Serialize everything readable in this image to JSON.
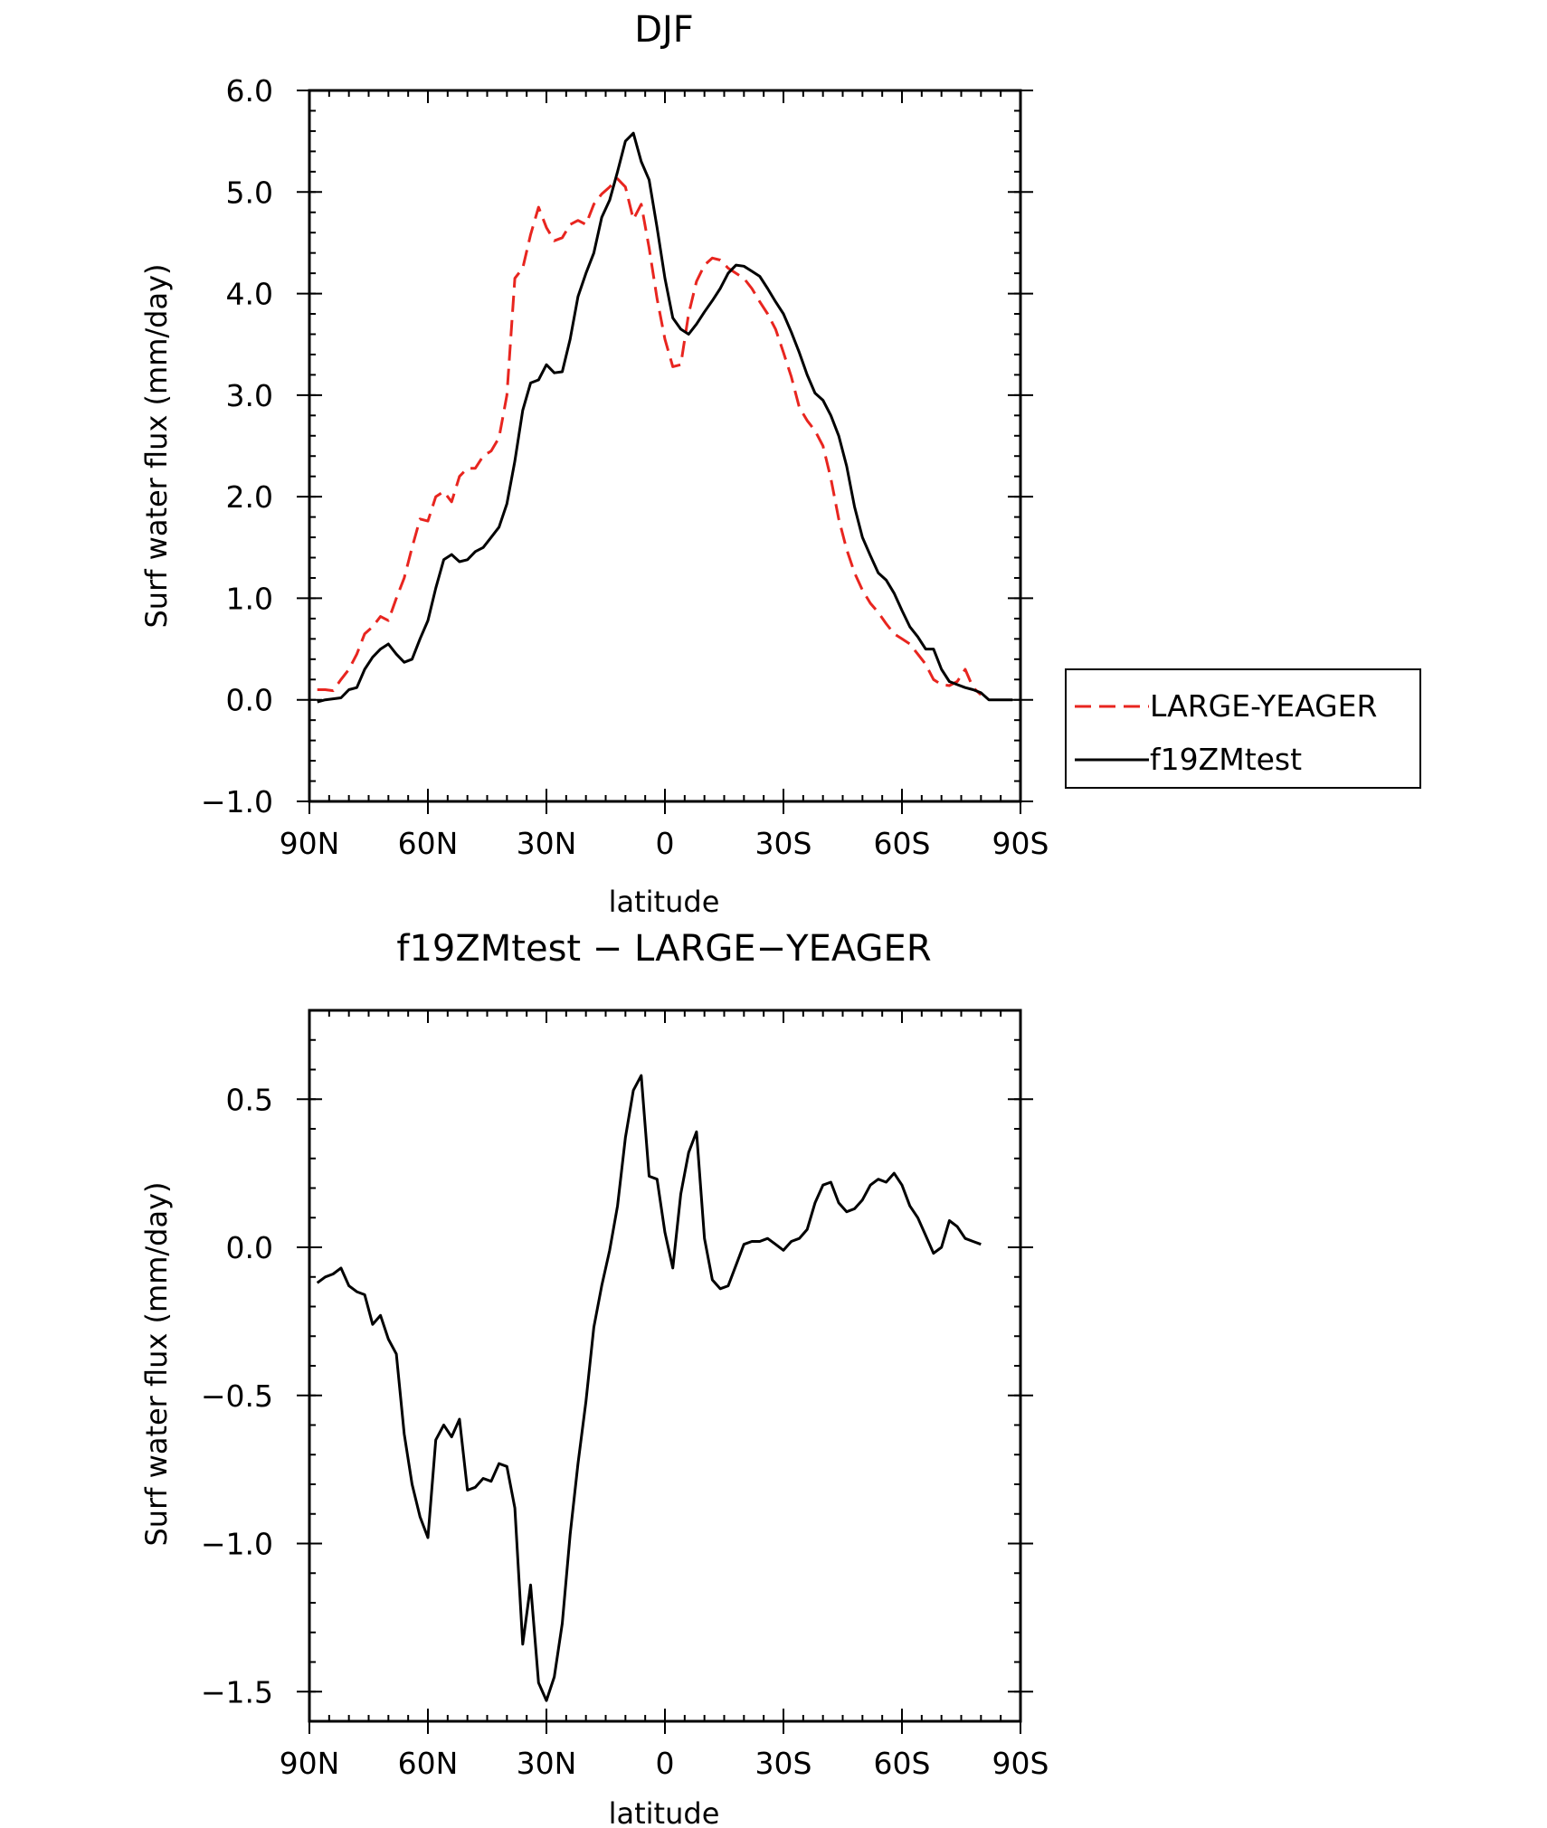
{
  "chart_data": [
    {
      "type": "line",
      "title": "DJF",
      "xlabel": "latitude",
      "ylabel": "Surf water flux (mm/day)",
      "xlim": [
        -90,
        90
      ],
      "ylim": [
        -1.0,
        6.0
      ],
      "xticks": [
        -90,
        -60,
        -30,
        0,
        30,
        60,
        90
      ],
      "xtick_labels": [
        "90N",
        "60N",
        "30N",
        "0",
        "30S",
        "60S",
        "90S"
      ],
      "yticks": [
        -1.0,
        0.0,
        1.0,
        2.0,
        3.0,
        4.0,
        5.0,
        6.0
      ],
      "ytick_labels": [
        "−1.0",
        "0.0",
        "1.0",
        "2.0",
        "3.0",
        "4.0",
        "5.0",
        "6.0"
      ],
      "legend_position": "right",
      "series": [
        {
          "name": "LARGE-YEAGER",
          "color": "#e8251f",
          "dash": "dashed",
          "x": [
            -88,
            -86,
            -84,
            -82,
            -80,
            -78,
            -76,
            -74,
            -72,
            -70,
            -68,
            -66,
            -64,
            -62,
            -60,
            -58,
            -56,
            -54,
            -52,
            -50,
            -48,
            -46,
            -44,
            -42,
            -40,
            -38,
            -36,
            -34,
            -32,
            -30,
            -28,
            -26,
            -24,
            -22,
            -20,
            -18,
            -16,
            -14,
            -12,
            -10,
            -8,
            -6,
            -4,
            -2,
            0,
            2,
            4,
            6,
            8,
            10,
            12,
            14,
            16,
            18,
            20,
            22,
            24,
            26,
            28,
            30,
            32,
            34,
            36,
            38,
            40,
            42,
            44,
            46,
            48,
            50,
            52,
            54,
            56,
            58,
            60,
            62,
            64,
            66,
            68,
            70,
            72,
            74,
            76,
            78,
            80
          ],
          "y": [
            0.1,
            0.1,
            0.09,
            0.2,
            0.3,
            0.45,
            0.65,
            0.72,
            0.82,
            0.78,
            1.0,
            1.2,
            1.5,
            1.78,
            1.76,
            2.0,
            2.05,
            1.95,
            2.2,
            2.28,
            2.28,
            2.4,
            2.45,
            2.58,
            3.0,
            4.15,
            4.25,
            4.58,
            4.85,
            4.65,
            4.52,
            4.55,
            4.68,
            4.72,
            4.68,
            4.88,
            4.98,
            5.05,
            5.13,
            5.05,
            4.73,
            4.88,
            4.45,
            3.95,
            3.55,
            3.28,
            3.3,
            3.8,
            4.12,
            4.28,
            4.35,
            4.33,
            4.25,
            4.2,
            4.15,
            4.05,
            3.92,
            3.8,
            3.65,
            3.42,
            3.18,
            2.88,
            2.75,
            2.65,
            2.5,
            2.18,
            1.78,
            1.48,
            1.25,
            1.08,
            0.95,
            0.86,
            0.75,
            0.65,
            0.6,
            0.55,
            0.45,
            0.35,
            0.2,
            0.15,
            0.14,
            0.18,
            0.3,
            0.12,
            0.05
          ]
        },
        {
          "name": "f19ZMtest",
          "color": "#000000",
          "dash": "solid",
          "x": [
            -88,
            -86,
            -84,
            -82,
            -80,
            -78,
            -76,
            -74,
            -72,
            -70,
            -68,
            -66,
            -64,
            -62,
            -60,
            -58,
            -56,
            -54,
            -52,
            -50,
            -48,
            -46,
            -44,
            -42,
            -40,
            -38,
            -36,
            -34,
            -32,
            -30,
            -28,
            -26,
            -24,
            -22,
            -20,
            -18,
            -16,
            -14,
            -12,
            -10,
            -8,
            -6,
            -4,
            -2,
            0,
            2,
            4,
            6,
            8,
            10,
            12,
            14,
            16,
            18,
            20,
            22,
            24,
            26,
            28,
            30,
            32,
            34,
            36,
            38,
            40,
            42,
            44,
            46,
            48,
            50,
            52,
            54,
            56,
            58,
            60,
            62,
            64,
            66,
            68,
            70,
            72,
            74,
            76,
            78,
            80,
            82,
            84,
            86,
            88
          ],
          "y": [
            -0.02,
            0.0,
            0.01,
            0.02,
            0.1,
            0.12,
            0.3,
            0.42,
            0.5,
            0.55,
            0.45,
            0.37,
            0.4,
            0.6,
            0.78,
            1.1,
            1.38,
            1.43,
            1.36,
            1.38,
            1.46,
            1.5,
            1.6,
            1.7,
            1.93,
            2.35,
            2.85,
            3.12,
            3.15,
            3.3,
            3.22,
            3.23,
            3.55,
            3.97,
            4.2,
            4.4,
            4.75,
            4.92,
            5.2,
            5.5,
            5.58,
            5.3,
            5.12,
            4.65,
            4.15,
            3.76,
            3.65,
            3.6,
            3.7,
            3.82,
            3.93,
            4.05,
            4.2,
            4.28,
            4.27,
            4.22,
            4.17,
            4.05,
            3.92,
            3.8,
            3.62,
            3.42,
            3.2,
            3.02,
            2.95,
            2.8,
            2.6,
            2.3,
            1.9,
            1.6,
            1.42,
            1.25,
            1.18,
            1.05,
            0.88,
            0.72,
            0.62,
            0.5,
            0.5,
            0.3,
            0.18,
            0.15,
            0.12,
            0.1,
            0.07,
            0.0,
            0.0,
            0.0,
            0.0
          ]
        }
      ]
    },
    {
      "type": "line",
      "title": "f19ZMtest − LARGE−YEAGER",
      "xlabel": "latitude",
      "ylabel": "Surf water flux (mm/day)",
      "xlim": [
        -90,
        90
      ],
      "ylim": [
        -1.6,
        0.8
      ],
      "xticks": [
        -90,
        -60,
        -30,
        0,
        30,
        60,
        90
      ],
      "xtick_labels": [
        "90N",
        "60N",
        "30N",
        "0",
        "30S",
        "60S",
        "90S"
      ],
      "yticks": [
        -1.5,
        -1.0,
        -0.5,
        0.0,
        0.5
      ],
      "ytick_labels": [
        "−1.5",
        "−1.0",
        "−0.5",
        "0.0",
        "0.5"
      ],
      "series": [
        {
          "name": "f19ZMtest − LARGE−YEAGER",
          "color": "#000000",
          "dash": "solid",
          "x": [
            -88,
            -86,
            -84,
            -82,
            -80,
            -78,
            -76,
            -74,
            -72,
            -70,
            -68,
            -66,
            -64,
            -62,
            -60,
            -58,
            -56,
            -54,
            -52,
            -50,
            -48,
            -46,
            -44,
            -42,
            -40,
            -38,
            -36,
            -34,
            -32,
            -30,
            -28,
            -26,
            -24,
            -22,
            -20,
            -18,
            -16,
            -14,
            -12,
            -10,
            -8,
            -6,
            -4,
            -2,
            0,
            2,
            4,
            6,
            8,
            10,
            12,
            14,
            16,
            18,
            20,
            22,
            24,
            26,
            28,
            30,
            32,
            34,
            36,
            38,
            40,
            42,
            44,
            46,
            48,
            50,
            52,
            54,
            56,
            58,
            60,
            62,
            64,
            66,
            68,
            70,
            72,
            74,
            76,
            78,
            80
          ],
          "y": [
            -0.12,
            -0.1,
            -0.09,
            -0.07,
            -0.13,
            -0.15,
            -0.16,
            -0.26,
            -0.23,
            -0.31,
            -0.36,
            -0.63,
            -0.8,
            -0.91,
            -0.98,
            -0.65,
            -0.6,
            -0.64,
            -0.58,
            -0.82,
            -0.81,
            -0.78,
            -0.79,
            -0.73,
            -0.74,
            -0.88,
            -1.34,
            -1.14,
            -1.47,
            -1.53,
            -1.45,
            -1.27,
            -0.97,
            -0.73,
            -0.52,
            -0.27,
            -0.13,
            -0.01,
            0.14,
            0.37,
            0.53,
            0.58,
            0.24,
            0.23,
            0.05,
            -0.07,
            0.18,
            0.32,
            0.39,
            0.03,
            -0.11,
            -0.14,
            -0.13,
            -0.06,
            0.01,
            0.02,
            0.02,
            0.03,
            0.01,
            -0.01,
            0.02,
            0.03,
            0.06,
            0.15,
            0.21,
            0.22,
            0.15,
            0.12,
            0.13,
            0.16,
            0.21,
            0.23,
            0.22,
            0.25,
            0.21,
            0.14,
            0.1,
            0.04,
            -0.02,
            0.0,
            0.09,
            0.07,
            0.03,
            0.02,
            0.01
          ]
        }
      ]
    }
  ]
}
